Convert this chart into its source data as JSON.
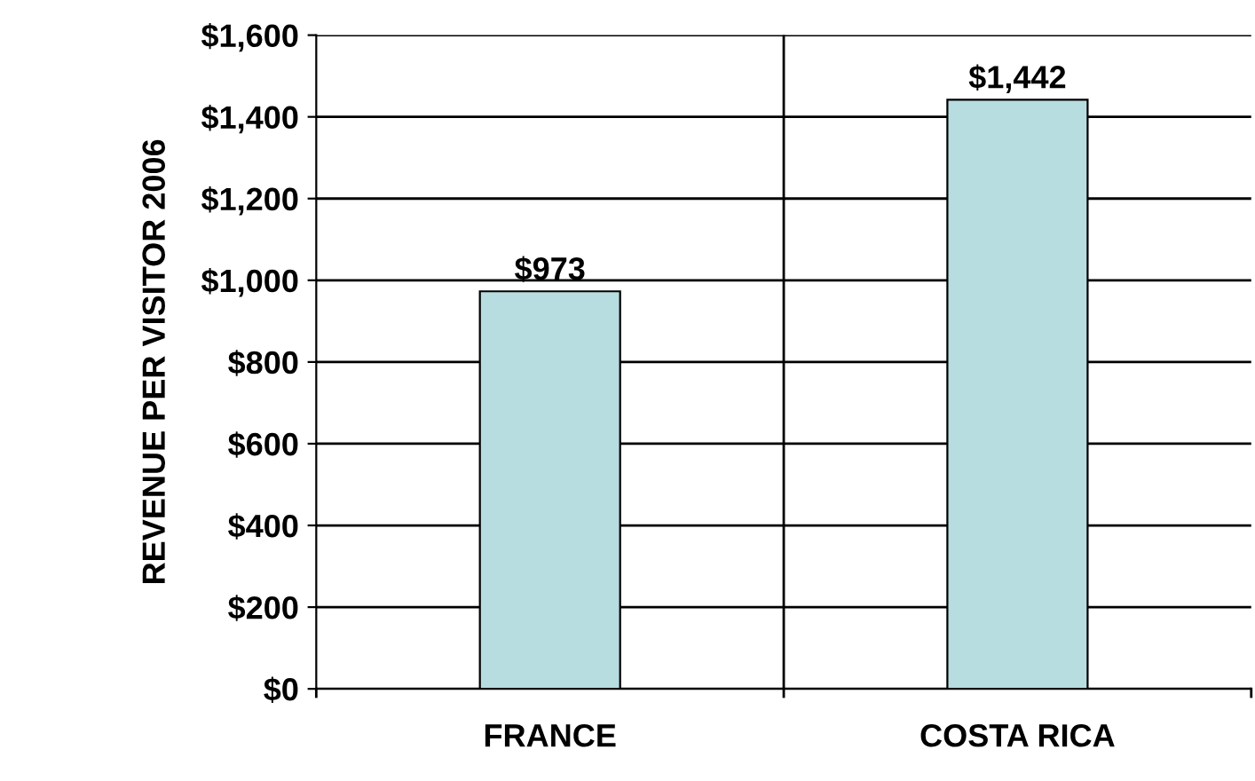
{
  "chart_data": {
    "type": "bar",
    "ylabel": "REVENUE PER VISITOR 2006",
    "categories": [
      "FRANCE",
      "COSTA RICA"
    ],
    "values": [
      973,
      1442
    ],
    "color": "#b8dde0",
    "data_labels": true,
    "value_labels": [
      "$973",
      "$1,442"
    ],
    "ylim": [
      0,
      1600
    ],
    "yticks": [
      {
        "value": 0,
        "label": "$0"
      },
      {
        "value": 200,
        "label": "$200"
      },
      {
        "value": 400,
        "label": "$400"
      },
      {
        "value": 600,
        "label": "$600"
      },
      {
        "value": 800,
        "label": "$800"
      },
      {
        "value": 1000,
        "label": "$1,000"
      },
      {
        "value": 1200,
        "label": "$1,200"
      },
      {
        "value": 1400,
        "label": "$1,400"
      },
      {
        "value": 1600,
        "label": "$1,600"
      }
    ],
    "grid": true
  }
}
